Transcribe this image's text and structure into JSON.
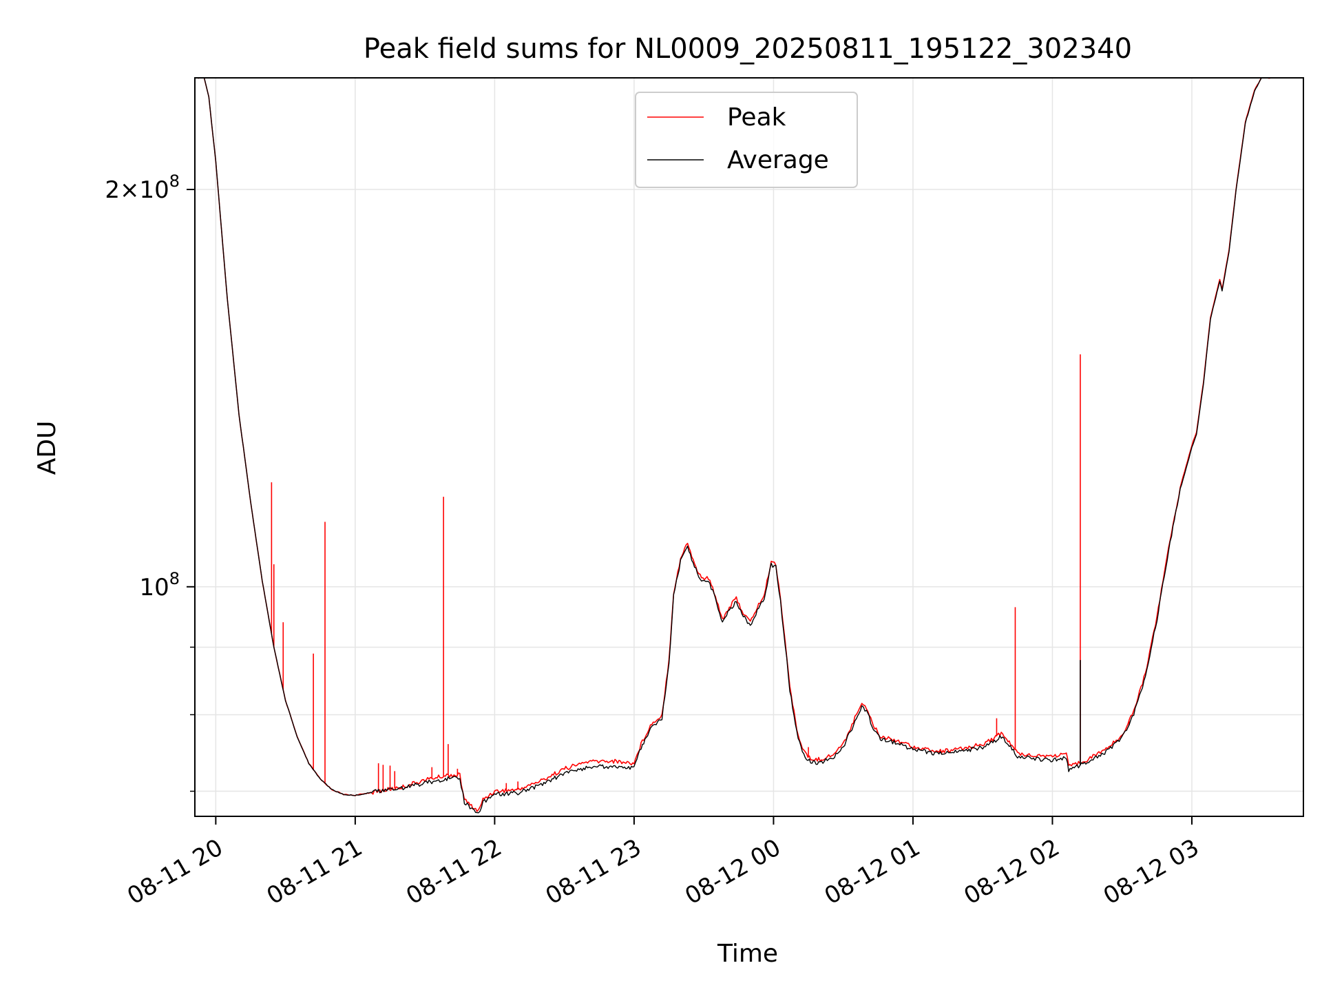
{
  "chart_data": {
    "type": "line",
    "title": "Peak field sums for NL0009_20250811_195122_302340",
    "xlabel": "Time",
    "ylabel": "ADU",
    "yscale": "log",
    "grid": true,
    "legend_placement": "upper center",
    "xlim": [
      "2025-08-11T19:51",
      "2025-08-12T03:48"
    ],
    "ylim": [
      67000000,
      243000000
    ],
    "x_ticks": [
      {
        "t": "2025-08-11T20:00",
        "label": "08-11 20"
      },
      {
        "t": "2025-08-11T21:00",
        "label": "08-11 21"
      },
      {
        "t": "2025-08-11T22:00",
        "label": "08-11 22"
      },
      {
        "t": "2025-08-11T23:00",
        "label": "08-11 23"
      },
      {
        "t": "2025-08-12T00:00",
        "label": "08-12 00"
      },
      {
        "t": "2025-08-12T01:00",
        "label": "08-12 01"
      },
      {
        "t": "2025-08-12T02:00",
        "label": "08-12 02"
      },
      {
        "t": "2025-08-12T03:00",
        "label": "08-12 03"
      }
    ],
    "y_major_ticks": [
      {
        "v": 100000000,
        "mantissa": "",
        "exponent": "8"
      },
      {
        "v": 200000000,
        "mantissa": "2",
        "exponent": "8"
      }
    ],
    "y_minor_ticks": [
      70000000,
      80000000,
      90000000
    ],
    "series": [
      {
        "name": "Peak",
        "color": "#ff0000",
        "points": [
          [
            "2025-08-11T19:52",
            243000000
          ],
          [
            "2025-08-11T19:55",
            243000000
          ],
          [
            "2025-08-11T19:57",
            235000000
          ],
          [
            "2025-08-11T20:00",
            210000000
          ],
          [
            "2025-08-11T20:05",
            165000000
          ],
          [
            "2025-08-11T20:10",
            135000000
          ],
          [
            "2025-08-11T20:15",
            116000000
          ],
          [
            "2025-08-11T20:20",
            101000000
          ],
          [
            "2025-08-11T20:25",
            90000000
          ],
          [
            "2025-08-11T20:30",
            82000000
          ],
          [
            "2025-08-11T20:35",
            77000000
          ],
          [
            "2025-08-11T20:40",
            73500000
          ],
          [
            "2025-08-11T20:45",
            71500000
          ],
          [
            "2025-08-11T20:50",
            70200000
          ],
          [
            "2025-08-11T20:55",
            69600000
          ],
          [
            "2025-08-11T21:00",
            69500000
          ],
          [
            "2025-08-11T21:10",
            70000000
          ],
          [
            "2025-08-11T21:20",
            70500000
          ],
          [
            "2025-08-11T21:30",
            71400000
          ],
          [
            "2025-08-11T21:40",
            72000000
          ],
          [
            "2025-08-11T21:45",
            72000000
          ],
          [
            "2025-08-11T21:47",
            69000000
          ],
          [
            "2025-08-11T21:50",
            68200000
          ],
          [
            "2025-08-11T21:53",
            67600000
          ],
          [
            "2025-08-11T21:55",
            69000000
          ],
          [
            "2025-08-11T22:00",
            70000000
          ],
          [
            "2025-08-11T22:10",
            70200000
          ],
          [
            "2025-08-11T22:20",
            71300000
          ],
          [
            "2025-08-11T22:30",
            72800000
          ],
          [
            "2025-08-11T22:40",
            73700000
          ],
          [
            "2025-08-11T22:50",
            73800000
          ],
          [
            "2025-08-11T23:00",
            73500000
          ],
          [
            "2025-08-11T23:03",
            76000000
          ],
          [
            "2025-08-11T23:07",
            78500000
          ],
          [
            "2025-08-11T23:12",
            80000000
          ],
          [
            "2025-08-11T23:15",
            88000000
          ],
          [
            "2025-08-11T23:17",
            99000000
          ],
          [
            "2025-08-11T23:20",
            105000000
          ],
          [
            "2025-08-11T23:23",
            108000000
          ],
          [
            "2025-08-11T23:26",
            104000000
          ],
          [
            "2025-08-11T23:29",
            101500000
          ],
          [
            "2025-08-11T23:32",
            101500000
          ],
          [
            "2025-08-11T23:35",
            98500000
          ],
          [
            "2025-08-11T23:38",
            94500000
          ],
          [
            "2025-08-11T23:41",
            96500000
          ],
          [
            "2025-08-11T23:44",
            98000000
          ],
          [
            "2025-08-11T23:47",
            95500000
          ],
          [
            "2025-08-11T23:50",
            94000000
          ],
          [
            "2025-08-11T23:53",
            96500000
          ],
          [
            "2025-08-11T23:56",
            98500000
          ],
          [
            "2025-08-11T23:59",
            104500000
          ],
          [
            "2025-08-12T00:01",
            104000000
          ],
          [
            "2025-08-12T00:03",
            98000000
          ],
          [
            "2025-08-12T00:05",
            91000000
          ],
          [
            "2025-08-12T00:07",
            84000000
          ],
          [
            "2025-08-12T00:10",
            78000000
          ],
          [
            "2025-08-12T00:13",
            75000000
          ],
          [
            "2025-08-12T00:16",
            74000000
          ],
          [
            "2025-08-12T00:20",
            74000000
          ],
          [
            "2025-08-12T00:25",
            74500000
          ],
          [
            "2025-08-12T00:30",
            76000000
          ],
          [
            "2025-08-12T00:35",
            79500000
          ],
          [
            "2025-08-12T00:38",
            81800000
          ],
          [
            "2025-08-12T00:40",
            81000000
          ],
          [
            "2025-08-12T00:43",
            78500000
          ],
          [
            "2025-08-12T00:46",
            77000000
          ],
          [
            "2025-08-12T00:50",
            76800000
          ],
          [
            "2025-08-12T00:55",
            76300000
          ],
          [
            "2025-08-12T01:00",
            75700000
          ],
          [
            "2025-08-12T01:10",
            75000000
          ],
          [
            "2025-08-12T01:20",
            75300000
          ],
          [
            "2025-08-12T01:30",
            76000000
          ],
          [
            "2025-08-12T01:35",
            76800000
          ],
          [
            "2025-08-12T01:38",
            77500000
          ],
          [
            "2025-08-12T01:42",
            76000000
          ],
          [
            "2025-08-12T01:45",
            74800000
          ],
          [
            "2025-08-12T01:50",
            74600000
          ],
          [
            "2025-08-12T01:55",
            74500000
          ],
          [
            "2025-08-12T02:00",
            74400000
          ],
          [
            "2025-08-12T02:06",
            74800000
          ],
          [
            "2025-08-12T02:07",
            73000000
          ],
          [
            "2025-08-12T02:10",
            73400000
          ],
          [
            "2025-08-12T02:15",
            74000000
          ],
          [
            "2025-08-12T02:20",
            74800000
          ],
          [
            "2025-08-12T02:25",
            75800000
          ],
          [
            "2025-08-12T02:30",
            77200000
          ],
          [
            "2025-08-12T02:35",
            80500000
          ],
          [
            "2025-08-12T02:40",
            86000000
          ],
          [
            "2025-08-12T02:45",
            95000000
          ],
          [
            "2025-08-12T02:50",
            107000000
          ],
          [
            "2025-08-12T02:55",
            119000000
          ],
          [
            "2025-08-12T03:00",
            128000000
          ],
          [
            "2025-08-12T03:02",
            131000000
          ],
          [
            "2025-08-12T03:05",
            143000000
          ],
          [
            "2025-08-12T03:08",
            160000000
          ],
          [
            "2025-08-12T03:12",
            171000000
          ],
          [
            "2025-08-12T03:13",
            168000000
          ],
          [
            "2025-08-12T03:16",
            180000000
          ],
          [
            "2025-08-12T03:19",
            200000000
          ],
          [
            "2025-08-12T03:23",
            225000000
          ],
          [
            "2025-08-12T03:27",
            238000000
          ],
          [
            "2025-08-12T03:30",
            243000000
          ],
          [
            "2025-08-12T03:34",
            243000000
          ]
        ],
        "spikes": [
          [
            "2025-08-11T20:24",
            120000000
          ],
          [
            "2025-08-11T20:25",
            104000000
          ],
          [
            "2025-08-11T20:29",
            94000000
          ],
          [
            "2025-08-11T20:42",
            89000000
          ],
          [
            "2025-08-11T20:47",
            112000000
          ],
          [
            "2025-08-11T21:10",
            73500000
          ],
          [
            "2025-08-11T21:12",
            73300000
          ],
          [
            "2025-08-11T21:15",
            73200000
          ],
          [
            "2025-08-11T21:17",
            72500000
          ],
          [
            "2025-08-11T21:33",
            73000000
          ],
          [
            "2025-08-11T21:38",
            117000000
          ],
          [
            "2025-08-11T21:40",
            76000000
          ],
          [
            "2025-08-11T21:44",
            72800000
          ],
          [
            "2025-08-11T22:05",
            71000000
          ],
          [
            "2025-08-11T22:10",
            71200000
          ],
          [
            "2025-08-12T00:15",
            75600000
          ],
          [
            "2025-08-12T01:36",
            79500000
          ],
          [
            "2025-08-12T01:44",
            96500000
          ],
          [
            "2025-08-12T02:12",
            150000000
          ],
          [
            "2025-08-12T02:33",
            78500000
          ]
        ]
      },
      {
        "name": "Average",
        "color": "#000000",
        "points": [
          [
            "2025-08-11T19:52",
            243000000
          ],
          [
            "2025-08-11T19:55",
            243000000
          ],
          [
            "2025-08-11T19:57",
            235000000
          ],
          [
            "2025-08-11T20:00",
            210000000
          ],
          [
            "2025-08-11T20:05",
            165000000
          ],
          [
            "2025-08-11T20:10",
            135000000
          ],
          [
            "2025-08-11T20:15",
            116000000
          ],
          [
            "2025-08-11T20:20",
            101000000
          ],
          [
            "2025-08-11T20:25",
            90000000
          ],
          [
            "2025-08-11T20:30",
            82000000
          ],
          [
            "2025-08-11T20:35",
            77000000
          ],
          [
            "2025-08-11T20:40",
            73500000
          ],
          [
            "2025-08-11T20:45",
            71500000
          ],
          [
            "2025-08-11T20:50",
            70200000
          ],
          [
            "2025-08-11T20:55",
            69600000
          ],
          [
            "2025-08-11T21:00",
            69500000
          ],
          [
            "2025-08-11T21:10",
            70000000
          ],
          [
            "2025-08-11T21:20",
            70400000
          ],
          [
            "2025-08-11T21:30",
            71000000
          ],
          [
            "2025-08-11T21:40",
            71600000
          ],
          [
            "2025-08-11T21:45",
            71600000
          ],
          [
            "2025-08-11T21:47",
            68700000
          ],
          [
            "2025-08-11T21:50",
            67900000
          ],
          [
            "2025-08-11T21:53",
            67300000
          ],
          [
            "2025-08-11T21:55",
            68700000
          ],
          [
            "2025-08-11T22:00",
            69600000
          ],
          [
            "2025-08-11T22:10",
            69800000
          ],
          [
            "2025-08-11T22:20",
            70800000
          ],
          [
            "2025-08-11T22:30",
            72200000
          ],
          [
            "2025-08-11T22:40",
            73000000
          ],
          [
            "2025-08-11T22:50",
            73100000
          ],
          [
            "2025-08-11T23:00",
            72900000
          ],
          [
            "2025-08-11T23:03",
            75500000
          ],
          [
            "2025-08-11T23:07",
            78000000
          ],
          [
            "2025-08-11T23:12",
            79500000
          ],
          [
            "2025-08-11T23:15",
            87500000
          ],
          [
            "2025-08-11T23:17",
            98500000
          ],
          [
            "2025-08-11T23:20",
            104500000
          ],
          [
            "2025-08-11T23:23",
            107500000
          ],
          [
            "2025-08-11T23:26",
            103500000
          ],
          [
            "2025-08-11T23:29",
            101000000
          ],
          [
            "2025-08-11T23:32",
            101000000
          ],
          [
            "2025-08-11T23:35",
            98000000
          ],
          [
            "2025-08-11T23:38",
            94000000
          ],
          [
            "2025-08-11T23:41",
            96000000
          ],
          [
            "2025-08-11T23:44",
            97500000
          ],
          [
            "2025-08-11T23:47",
            95000000
          ],
          [
            "2025-08-11T23:50",
            93500000
          ],
          [
            "2025-08-11T23:53",
            96000000
          ],
          [
            "2025-08-11T23:56",
            98000000
          ],
          [
            "2025-08-11T23:59",
            104000000
          ],
          [
            "2025-08-12T00:01",
            103500000
          ],
          [
            "2025-08-12T00:03",
            97500000
          ],
          [
            "2025-08-12T00:05",
            90500000
          ],
          [
            "2025-08-12T00:07",
            83500000
          ],
          [
            "2025-08-12T00:10",
            77500000
          ],
          [
            "2025-08-12T00:13",
            74500000
          ],
          [
            "2025-08-12T00:16",
            73600000
          ],
          [
            "2025-08-12T00:20",
            73600000
          ],
          [
            "2025-08-12T00:25",
            74100000
          ],
          [
            "2025-08-12T00:30",
            75600000
          ],
          [
            "2025-08-12T00:35",
            79000000
          ],
          [
            "2025-08-12T00:38",
            81300000
          ],
          [
            "2025-08-12T00:40",
            80500000
          ],
          [
            "2025-08-12T00:43",
            78100000
          ],
          [
            "2025-08-12T00:46",
            76600000
          ],
          [
            "2025-08-12T00:50",
            76400000
          ],
          [
            "2025-08-12T00:55",
            75900000
          ],
          [
            "2025-08-12T01:00",
            75300000
          ],
          [
            "2025-08-12T01:10",
            74700000
          ],
          [
            "2025-08-12T01:20",
            75000000
          ],
          [
            "2025-08-12T01:30",
            75600000
          ],
          [
            "2025-08-12T01:35",
            76400000
          ],
          [
            "2025-08-12T01:38",
            77000000
          ],
          [
            "2025-08-12T01:42",
            75600000
          ],
          [
            "2025-08-12T01:45",
            74400000
          ],
          [
            "2025-08-12T01:50",
            74200000
          ],
          [
            "2025-08-12T01:55",
            74000000
          ],
          [
            "2025-08-12T02:00",
            73900000
          ],
          [
            "2025-08-12T02:06",
            74300000
          ],
          [
            "2025-08-12T02:07",
            72600000
          ],
          [
            "2025-08-12T02:10",
            73000000
          ],
          [
            "2025-08-12T02:15",
            73600000
          ],
          [
            "2025-08-12T02:20",
            74400000
          ],
          [
            "2025-08-12T02:25",
            75400000
          ],
          [
            "2025-08-12T02:30",
            76800000
          ],
          [
            "2025-08-12T02:35",
            80000000
          ],
          [
            "2025-08-12T02:40",
            85500000
          ],
          [
            "2025-08-12T02:45",
            94500000
          ],
          [
            "2025-08-12T02:50",
            106500000
          ],
          [
            "2025-08-12T02:55",
            118500000
          ],
          [
            "2025-08-12T03:00",
            127500000
          ],
          [
            "2025-08-12T03:02",
            130500000
          ],
          [
            "2025-08-12T03:05",
            142500000
          ],
          [
            "2025-08-12T03:08",
            159500000
          ],
          [
            "2025-08-12T03:12",
            170500000
          ],
          [
            "2025-08-12T03:13",
            167500000
          ],
          [
            "2025-08-12T03:16",
            179500000
          ],
          [
            "2025-08-12T03:19",
            199500000
          ],
          [
            "2025-08-12T03:23",
            224500000
          ],
          [
            "2025-08-12T03:27",
            237500000
          ],
          [
            "2025-08-12T03:30",
            243000000
          ],
          [
            "2025-08-12T03:34",
            243000000
          ]
        ],
        "spikes": [
          [
            "2025-08-12T02:12",
            88000000
          ]
        ]
      }
    ]
  }
}
